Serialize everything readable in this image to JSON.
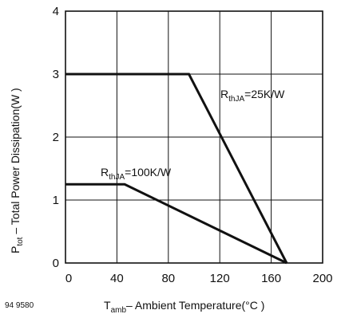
{
  "figure_id": "94 9580",
  "chart_data": {
    "type": "line",
    "xlabel": {
      "main": "T",
      "sub": "amb",
      "rest": "– Ambient Temperature(°C )"
    },
    "ylabel": {
      "main": "P",
      "sub": "tot",
      "rest": " – Total Power Dissipation(W )"
    },
    "xlim": [
      0,
      200
    ],
    "ylim": [
      0,
      4
    ],
    "xticks": [
      0,
      40,
      80,
      120,
      160,
      200
    ],
    "yticks": [
      0,
      1,
      2,
      3,
      4
    ],
    "grid": true,
    "series": [
      {
        "label": {
          "main": "R",
          "sub": "thJA",
          "rest": "=25K/W"
        },
        "points": [
          [
            0,
            3
          ],
          [
            96,
            3
          ],
          [
            172,
            0
          ]
        ]
      },
      {
        "label": {
          "main": "R",
          "sub": "thJA",
          "rest": "=100K/W"
        },
        "points": [
          [
            0,
            1.25
          ],
          [
            46,
            1.25
          ],
          [
            172,
            0
          ]
        ]
      }
    ]
  }
}
